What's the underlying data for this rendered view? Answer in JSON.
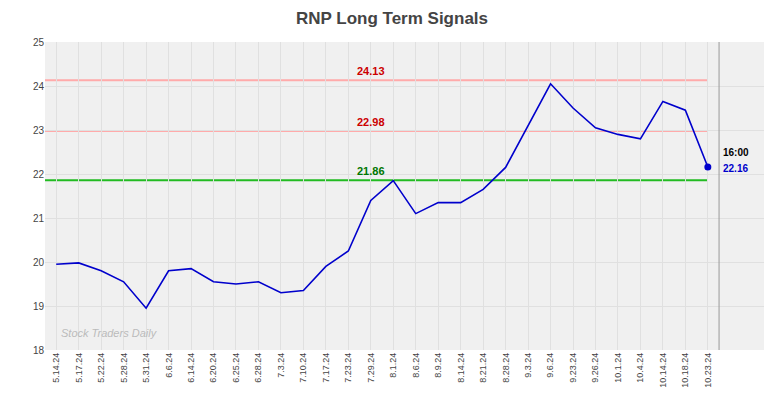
{
  "chart_data": {
    "type": "line",
    "title": "RNP Long Term Signals",
    "categories": [
      "5.14.24",
      "5.17.24",
      "5.22.24",
      "5.28.24",
      "5.31.24",
      "6.6.24",
      "6.14.24",
      "6.20.24",
      "6.25.24",
      "6.28.24",
      "7.3.24",
      "7.10.24",
      "7.17.24",
      "7.23.24",
      "7.29.24",
      "8.1.24",
      "8.6.24",
      "8.9.24",
      "8.14.24",
      "8.21.24",
      "8.28.24",
      "9.3.24",
      "9.6.24",
      "9.23.24",
      "9.26.24",
      "10.1.24",
      "10.4.24",
      "10.14.24",
      "10.18.24",
      "10.23.24"
    ],
    "values": [
      19.95,
      19.98,
      19.8,
      19.55,
      18.95,
      19.8,
      19.85,
      19.55,
      19.5,
      19.55,
      19.3,
      19.35,
      19.9,
      20.25,
      21.4,
      21.85,
      21.1,
      21.35,
      21.35,
      21.65,
      22.15,
      23.1,
      24.05,
      23.5,
      23.05,
      22.9,
      22.8,
      23.65,
      23.45,
      22.16
    ],
    "color": "#0000cc",
    "marker": "end",
    "hlines": [
      {
        "value": 21.86,
        "label": "21.86",
        "color": "#22bb22",
        "label_color": "#007700",
        "label_category": "7.29.24"
      },
      {
        "value": 22.98,
        "label": "22.98",
        "color": "#ffaaaa",
        "label_color": "#cc0000",
        "label_category": "7.29.24"
      },
      {
        "value": 24.13,
        "label": "24.13",
        "color": "#ffaaaa",
        "label_color": "#cc0000",
        "label_category": "7.29.24"
      }
    ],
    "end_label_time": "16:00",
    "end_label_price": "22.16",
    "watermark": "Stock Traders Daily",
    "watermark_color": "#bbbbbb",
    "plot_bg_color": "#f0f0f0",
    "ylim": [
      18,
      25
    ],
    "yticks": [
      18,
      19,
      20,
      21,
      22,
      23,
      24,
      25
    ],
    "grid": true
  }
}
